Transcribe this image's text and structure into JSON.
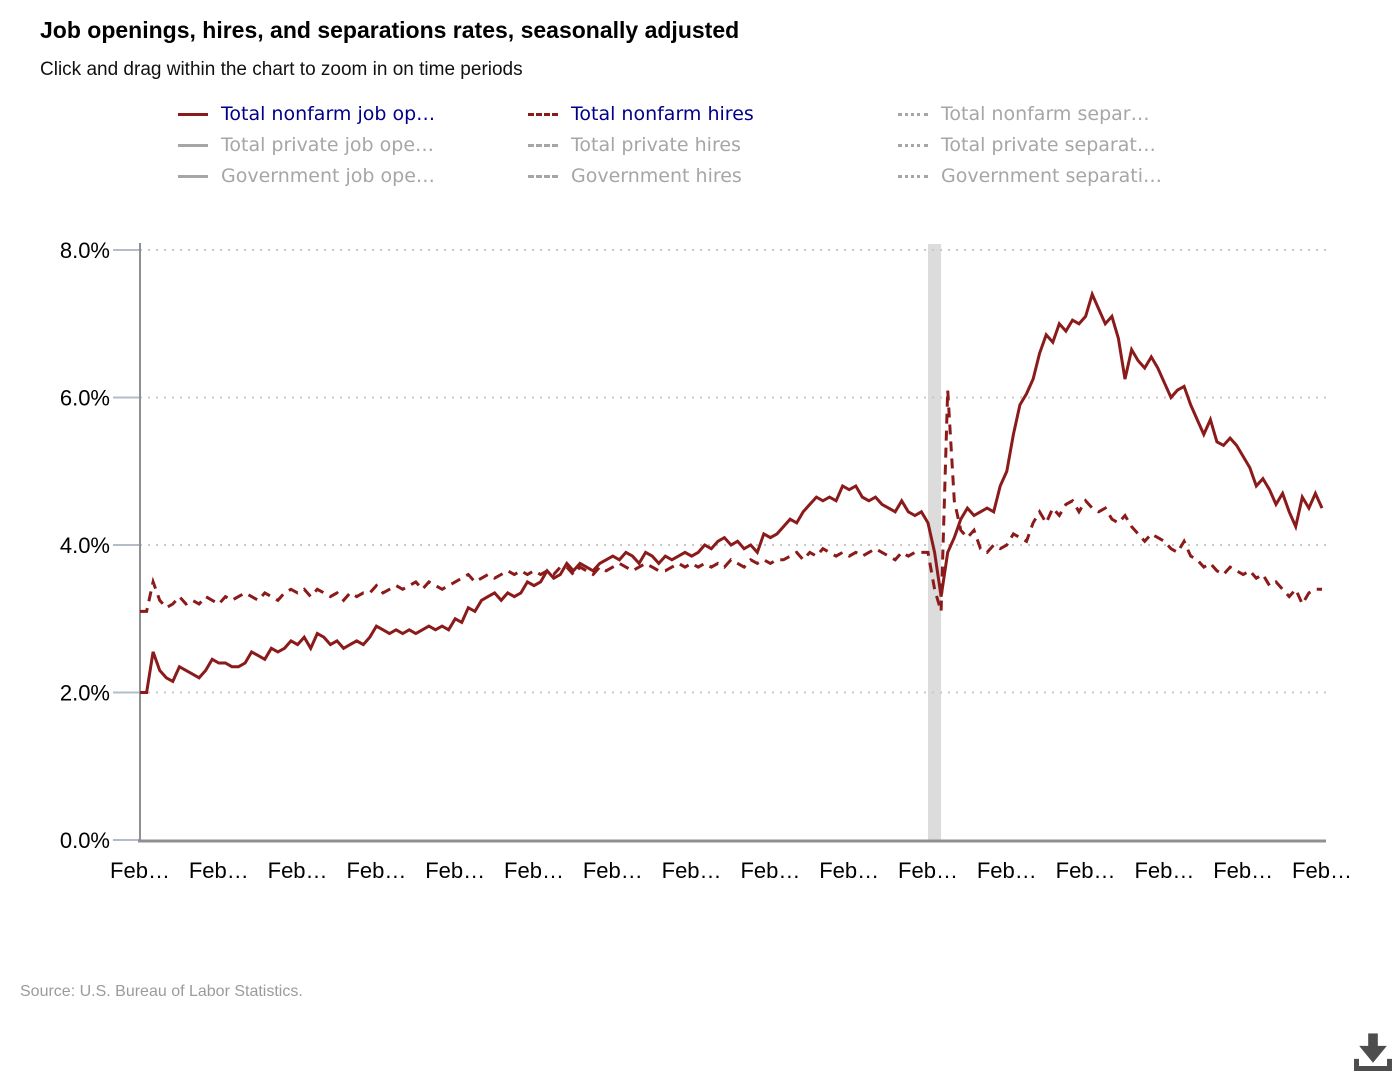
{
  "header": {
    "title": "Job openings, hires, and separations rates, seasonally adjusted",
    "subtitle": "Click and drag within the chart to zoom in on time periods"
  },
  "legend": {
    "items": [
      {
        "id": "total-nonfarm-job-openings",
        "label": "Total nonfarm job op…",
        "style": "solid",
        "active": true
      },
      {
        "id": "total-nonfarm-hires",
        "label": "Total nonfarm hires",
        "style": "dashed",
        "active": true
      },
      {
        "id": "total-nonfarm-separations",
        "label": "Total nonfarm separ…",
        "style": "dotted",
        "active": false
      },
      {
        "id": "total-private-job-openings",
        "label": "Total private job ope…",
        "style": "solid",
        "active": false
      },
      {
        "id": "total-private-hires",
        "label": "Total private hires",
        "style": "dashed",
        "active": false
      },
      {
        "id": "total-private-separations",
        "label": "Total private separat…",
        "style": "dotted",
        "active": false
      },
      {
        "id": "government-job-openings",
        "label": "Government job ope…",
        "style": "solid",
        "active": false
      },
      {
        "id": "government-hires",
        "label": "Government hires",
        "style": "dashed",
        "active": false
      },
      {
        "id": "government-separations",
        "label": "Government separati…",
        "style": "dotted",
        "active": false
      }
    ]
  },
  "chart_data": {
    "type": "line",
    "title": "Job openings, hires, and separations rates, seasonally adjusted",
    "ylabel": "",
    "xlabel": "",
    "ylim": [
      0,
      8
    ],
    "y_tick_values": [
      8,
      6,
      4,
      2,
      0
    ],
    "y_tick_labels": [
      "8.0%",
      "6.0%",
      "4.0%",
      "2.0%",
      "0.0%"
    ],
    "x_tick_labels": [
      "Feb…",
      "Feb…",
      "Feb…",
      "Feb…",
      "Feb…",
      "Feb…",
      "Feb…",
      "Feb…",
      "Feb…",
      "Feb…",
      "Feb…",
      "Feb…",
      "Feb…",
      "Feb…",
      "Feb…",
      "Feb…"
    ],
    "x_ticks_every_n_points": 12,
    "grid": "dotted-horizontal",
    "legend_position": "top",
    "recession_band": {
      "start_index": 120,
      "end_index": 122
    },
    "series": [
      {
        "id": "total-nonfarm-job-openings",
        "name": "Total nonfarm job openings rate",
        "style": "solid",
        "values": [
          2.0,
          2.0,
          2.55,
          2.3,
          2.2,
          2.15,
          2.35,
          2.3,
          2.25,
          2.2,
          2.3,
          2.45,
          2.4,
          2.4,
          2.35,
          2.35,
          2.4,
          2.55,
          2.5,
          2.45,
          2.6,
          2.55,
          2.6,
          2.7,
          2.65,
          2.75,
          2.6,
          2.8,
          2.75,
          2.65,
          2.7,
          2.6,
          2.65,
          2.7,
          2.65,
          2.75,
          2.9,
          2.85,
          2.8,
          2.85,
          2.8,
          2.85,
          2.8,
          2.85,
          2.9,
          2.85,
          2.9,
          2.85,
          3.0,
          2.95,
          3.15,
          3.1,
          3.25,
          3.3,
          3.35,
          3.25,
          3.35,
          3.3,
          3.35,
          3.5,
          3.45,
          3.5,
          3.65,
          3.55,
          3.6,
          3.75,
          3.65,
          3.75,
          3.7,
          3.65,
          3.75,
          3.8,
          3.85,
          3.8,
          3.9,
          3.85,
          3.75,
          3.9,
          3.85,
          3.75,
          3.85,
          3.8,
          3.85,
          3.9,
          3.85,
          3.9,
          4.0,
          3.95,
          4.05,
          4.1,
          4.0,
          4.05,
          3.95,
          4.0,
          3.9,
          4.15,
          4.1,
          4.15,
          4.25,
          4.35,
          4.3,
          4.45,
          4.55,
          4.65,
          4.6,
          4.65,
          4.6,
          4.8,
          4.75,
          4.8,
          4.65,
          4.6,
          4.65,
          4.55,
          4.5,
          4.45,
          4.6,
          4.45,
          4.4,
          4.45,
          4.3,
          3.9,
          3.3,
          3.9,
          4.1,
          4.35,
          4.5,
          4.4,
          4.45,
          4.5,
          4.45,
          4.8,
          5.0,
          5.5,
          5.9,
          6.05,
          6.25,
          6.6,
          6.85,
          6.75,
          7.0,
          6.9,
          7.05,
          7.0,
          7.1,
          7.4,
          7.2,
          7.0,
          7.1,
          6.8,
          6.25,
          6.65,
          6.5,
          6.4,
          6.55,
          6.4,
          6.2,
          6.0,
          6.1,
          6.15,
          5.9,
          5.7,
          5.5,
          5.7,
          5.4,
          5.35,
          5.45,
          5.35,
          5.2,
          5.05,
          4.8,
          4.9,
          4.75,
          4.55,
          4.7,
          4.45,
          4.25,
          4.65,
          4.5,
          4.7,
          4.5
        ]
      },
      {
        "id": "total-nonfarm-hires",
        "name": "Total nonfarm hires rate",
        "style": "dashed",
        "values": [
          3.1,
          3.1,
          3.5,
          3.25,
          3.15,
          3.2,
          3.3,
          3.2,
          3.25,
          3.2,
          3.3,
          3.25,
          3.2,
          3.3,
          3.25,
          3.3,
          3.35,
          3.3,
          3.25,
          3.35,
          3.3,
          3.25,
          3.35,
          3.4,
          3.35,
          3.4,
          3.3,
          3.4,
          3.35,
          3.3,
          3.35,
          3.25,
          3.35,
          3.3,
          3.35,
          3.35,
          3.45,
          3.35,
          3.4,
          3.45,
          3.4,
          3.45,
          3.5,
          3.4,
          3.5,
          3.45,
          3.4,
          3.45,
          3.5,
          3.55,
          3.6,
          3.5,
          3.55,
          3.6,
          3.55,
          3.6,
          3.65,
          3.6,
          3.65,
          3.6,
          3.65,
          3.6,
          3.65,
          3.6,
          3.7,
          3.7,
          3.6,
          3.7,
          3.65,
          3.6,
          3.7,
          3.65,
          3.7,
          3.75,
          3.7,
          3.65,
          3.7,
          3.75,
          3.7,
          3.65,
          3.65,
          3.7,
          3.75,
          3.7,
          3.75,
          3.7,
          3.75,
          3.7,
          3.75,
          3.7,
          3.8,
          3.75,
          3.7,
          3.8,
          3.75,
          3.8,
          3.75,
          3.8,
          3.8,
          3.85,
          3.9,
          3.8,
          3.9,
          3.85,
          3.95,
          3.9,
          3.85,
          3.9,
          3.85,
          3.9,
          3.85,
          3.9,
          3.95,
          3.9,
          3.85,
          3.8,
          3.9,
          3.85,
          3.9,
          3.9,
          3.9,
          3.4,
          3.1,
          6.1,
          4.6,
          4.2,
          4.1,
          4.2,
          3.95,
          3.9,
          4.0,
          3.95,
          4.0,
          4.15,
          4.1,
          4.05,
          4.3,
          4.45,
          4.3,
          4.5,
          4.4,
          4.55,
          4.6,
          4.45,
          4.6,
          4.5,
          4.45,
          4.5,
          4.35,
          4.3,
          4.4,
          4.25,
          4.15,
          4.05,
          4.15,
          4.1,
          4.05,
          3.95,
          3.9,
          4.05,
          3.85,
          3.8,
          3.7,
          3.75,
          3.65,
          3.6,
          3.7,
          3.65,
          3.6,
          3.65,
          3.55,
          3.6,
          3.45,
          3.5,
          3.4,
          3.3,
          3.4,
          3.2,
          3.35,
          3.4,
          3.4
        ]
      }
    ]
  },
  "source": {
    "text": "Source: U.S. Bureau of Labor Statistics."
  },
  "colors": {
    "series_active": "#8b1a1a",
    "legend_active_text": "#00008b",
    "inactive": "#a6a6a6",
    "gridline": "#c8c8c8",
    "axis": "#909090",
    "tick_mark": "#b3bcc8",
    "band": "#dcdcdc",
    "tick_text": "#000000",
    "source_text": "#9b9b9b",
    "icon": "#4d4d4d"
  }
}
